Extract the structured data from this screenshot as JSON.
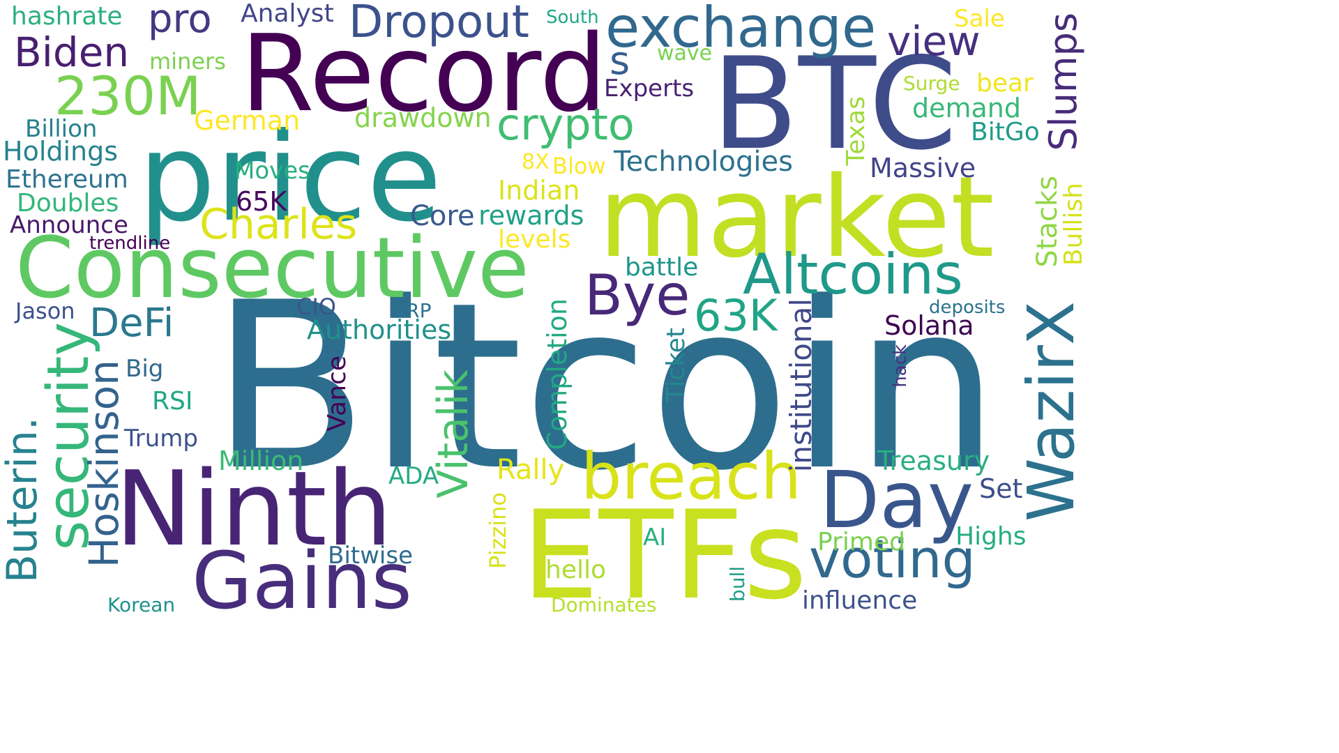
{
  "words": [
    {
      "text": "Bitcoin",
      "color": "#2d6e8e",
      "orientation": "horizontal"
    },
    {
      "text": "price",
      "color": "#21908d",
      "orientation": "horizontal"
    },
    {
      "text": "market",
      "color": "#c2df23",
      "orientation": "horizontal"
    },
    {
      "text": "Record",
      "color": "#440154",
      "orientation": "horizontal"
    },
    {
      "text": "BTC",
      "color": "#3e4c8a",
      "orientation": "horizontal"
    },
    {
      "text": "Consecutive",
      "color": "#5ec962",
      "orientation": "horizontal"
    },
    {
      "text": "ETFs",
      "color": "#c8e020",
      "orientation": "horizontal"
    },
    {
      "text": "Ninth",
      "color": "#482475",
      "orientation": "horizontal"
    },
    {
      "text": "WazirX",
      "color": "#2c728e",
      "orientation": "vertical"
    },
    {
      "text": "Gains",
      "color": "#472d7b",
      "orientation": "horizontal"
    },
    {
      "text": "exchange",
      "color": "#31688e",
      "orientation": "horizontal"
    },
    {
      "text": "Day",
      "color": "#39568c",
      "orientation": "horizontal"
    },
    {
      "text": "breach",
      "color": "#d8e219",
      "orientation": "horizontal"
    },
    {
      "text": "Altcoins",
      "color": "#1f998a",
      "orientation": "horizontal"
    },
    {
      "text": "crypto",
      "color": "#40bd72",
      "orientation": "horizontal"
    },
    {
      "text": "security",
      "color": "#35b779",
      "orientation": "vertical"
    },
    {
      "text": "Dropout",
      "color": "#3b528b",
      "orientation": "horizontal"
    },
    {
      "text": "voting",
      "color": "#31688e",
      "orientation": "horizontal"
    },
    {
      "text": "Bye",
      "color": "#482878",
      "orientation": "horizontal"
    },
    {
      "text": "230M",
      "color": "#7ad151",
      "orientation": "horizontal"
    },
    {
      "text": "Buterin.",
      "color": "#26828e",
      "orientation": "vertical"
    },
    {
      "text": "Hoskinson",
      "color": "#33638d",
      "orientation": "vertical"
    },
    {
      "text": "Vitalik",
      "color": "#4ac16d",
      "orientation": "vertical"
    },
    {
      "text": "Biden",
      "color": "#481f70",
      "orientation": "horizontal"
    },
    {
      "text": "Charles",
      "color": "#dde318",
      "orientation": "horizontal"
    },
    {
      "text": "63K",
      "color": "#20a486",
      "orientation": "horizontal"
    },
    {
      "text": "DeFi",
      "color": "#2a788e",
      "orientation": "horizontal"
    },
    {
      "text": "Slumps",
      "color": "#472c7a",
      "orientation": "vertical"
    },
    {
      "text": "view",
      "color": "#46307e",
      "orientation": "horizontal"
    },
    {
      "text": "pro",
      "color": "#453781",
      "orientation": "horizontal"
    },
    {
      "text": "s",
      "color": "#355f8d",
      "orientation": "horizontal"
    },
    {
      "text": "Technologies",
      "color": "#2d718e",
      "orientation": "horizontal"
    },
    {
      "text": "institutional",
      "color": "#3f4889",
      "orientation": "vertical"
    },
    {
      "text": "Completion",
      "color": "#22a884",
      "orientation": "vertical"
    },
    {
      "text": "Massive",
      "color": "#414487",
      "orientation": "horizontal"
    },
    {
      "text": "Treasury",
      "color": "#29af7f",
      "orientation": "horizontal"
    },
    {
      "text": "Million",
      "color": "#3bbb75",
      "orientation": "horizontal"
    },
    {
      "text": "demand",
      "color": "#37b878",
      "orientation": "horizontal"
    },
    {
      "text": "Stacks",
      "color": "#8fd744",
      "orientation": "vertical"
    },
    {
      "text": "Bullish",
      "color": "#d5e21a",
      "orientation": "vertical"
    },
    {
      "text": "Rally",
      "color": "#e5e419",
      "orientation": "horizontal"
    },
    {
      "text": "Solana",
      "color": "#3e0751",
      "orientation": "horizontal"
    },
    {
      "text": "Highs",
      "color": "#25ac82",
      "orientation": "horizontal"
    },
    {
      "text": "Primed",
      "color": "#7ad151",
      "orientation": "horizontal"
    },
    {
      "text": "Vance",
      "color": "#440256",
      "orientation": "vertical"
    },
    {
      "text": "Ticket",
      "color": "#24878e",
      "orientation": "vertical"
    },
    {
      "text": "Core",
      "color": "#38598c",
      "orientation": "horizontal"
    },
    {
      "text": "rewards",
      "color": "#1fa187",
      "orientation": "horizontal"
    },
    {
      "text": "Authorities",
      "color": "#21918c",
      "orientation": "horizontal"
    },
    {
      "text": "influence",
      "color": "#3b528b",
      "orientation": "horizontal"
    },
    {
      "text": "Indian",
      "color": "#dae319",
      "orientation": "horizontal"
    },
    {
      "text": "drawdown",
      "color": "#84d44b",
      "orientation": "horizontal"
    },
    {
      "text": "Holdings",
      "color": "#26828e",
      "orientation": "horizontal"
    },
    {
      "text": "Ethereum",
      "color": "#2c728e",
      "orientation": "horizontal"
    },
    {
      "text": "Doubles",
      "color": "#32b67a",
      "orientation": "horizontal"
    },
    {
      "text": "Billion",
      "color": "#277f8e",
      "orientation": "horizontal"
    },
    {
      "text": "Announce",
      "color": "#481769",
      "orientation": "horizontal"
    },
    {
      "text": "Analyst",
      "color": "#404688",
      "orientation": "horizontal"
    },
    {
      "text": "hashrate",
      "color": "#2ab07f",
      "orientation": "horizontal"
    },
    {
      "text": "German",
      "color": "#fde725",
      "orientation": "horizontal"
    },
    {
      "text": "Moves",
      "color": "#28ae80",
      "orientation": "horizontal"
    },
    {
      "text": "65K",
      "color": "#46085c",
      "orientation": "horizontal"
    },
    {
      "text": "Texas",
      "color": "#9fda3a",
      "orientation": "vertical"
    },
    {
      "text": "Experts",
      "color": "#482173",
      "orientation": "horizontal"
    },
    {
      "text": "BitGo",
      "color": "#1e9b8a",
      "orientation": "horizontal"
    },
    {
      "text": "bear",
      "color": "#f1e51d",
      "orientation": "horizontal"
    },
    {
      "text": "Sale",
      "color": "#fde725",
      "orientation": "horizontal"
    },
    {
      "text": "battle",
      "color": "#1f958b",
      "orientation": "horizontal"
    },
    {
      "text": "levels",
      "color": "#fde725",
      "orientation": "horizontal"
    },
    {
      "text": "Pizzino",
      "color": "#d8e219",
      "orientation": "vertical"
    },
    {
      "text": "Set",
      "color": "#3d4e8a",
      "orientation": "horizontal"
    },
    {
      "text": "Bitwise",
      "color": "#2f6b8e",
      "orientation": "horizontal"
    },
    {
      "text": "AI",
      "color": "#29af7f",
      "orientation": "horizontal"
    },
    {
      "text": "hello",
      "color": "#addc30",
      "orientation": "horizontal"
    },
    {
      "text": "ADA",
      "color": "#24aa83",
      "orientation": "horizontal"
    },
    {
      "text": "Trump",
      "color": "#3b528b",
      "orientation": "horizontal"
    },
    {
      "text": "RSI",
      "color": "#22a785",
      "orientation": "horizontal"
    },
    {
      "text": "Big",
      "color": "#31688e",
      "orientation": "horizontal"
    },
    {
      "text": "CIO",
      "color": "#3a548c",
      "orientation": "horizontal"
    },
    {
      "text": "XRP",
      "color": "#2c728e",
      "orientation": "horizontal"
    },
    {
      "text": "Jason",
      "color": "#3b528b",
      "orientation": "horizontal"
    },
    {
      "text": "trendline",
      "color": "#440154",
      "orientation": "horizontal"
    },
    {
      "text": "miners",
      "color": "#7ad151",
      "orientation": "horizontal"
    },
    {
      "text": "South",
      "color": "#22a884",
      "orientation": "horizontal"
    },
    {
      "text": "wave",
      "color": "#7ad151",
      "orientation": "horizontal"
    },
    {
      "text": "Surge",
      "color": "#addc30",
      "orientation": "horizontal"
    },
    {
      "text": "8X",
      "color": "#fde725",
      "orientation": "horizontal"
    },
    {
      "text": "Blow",
      "color": "#fde725",
      "orientation": "horizontal"
    },
    {
      "text": "deposits",
      "color": "#2c728e",
      "orientation": "horizontal"
    },
    {
      "text": "hack",
      "color": "#46327e",
      "orientation": "vertical"
    },
    {
      "text": "Korean",
      "color": "#21918c",
      "orientation": "horizontal"
    },
    {
      "text": "Dominates",
      "color": "#b5de2b",
      "orientation": "horizontal"
    },
    {
      "text": "bull",
      "color": "#1f9e89",
      "orientation": "vertical"
    }
  ]
}
